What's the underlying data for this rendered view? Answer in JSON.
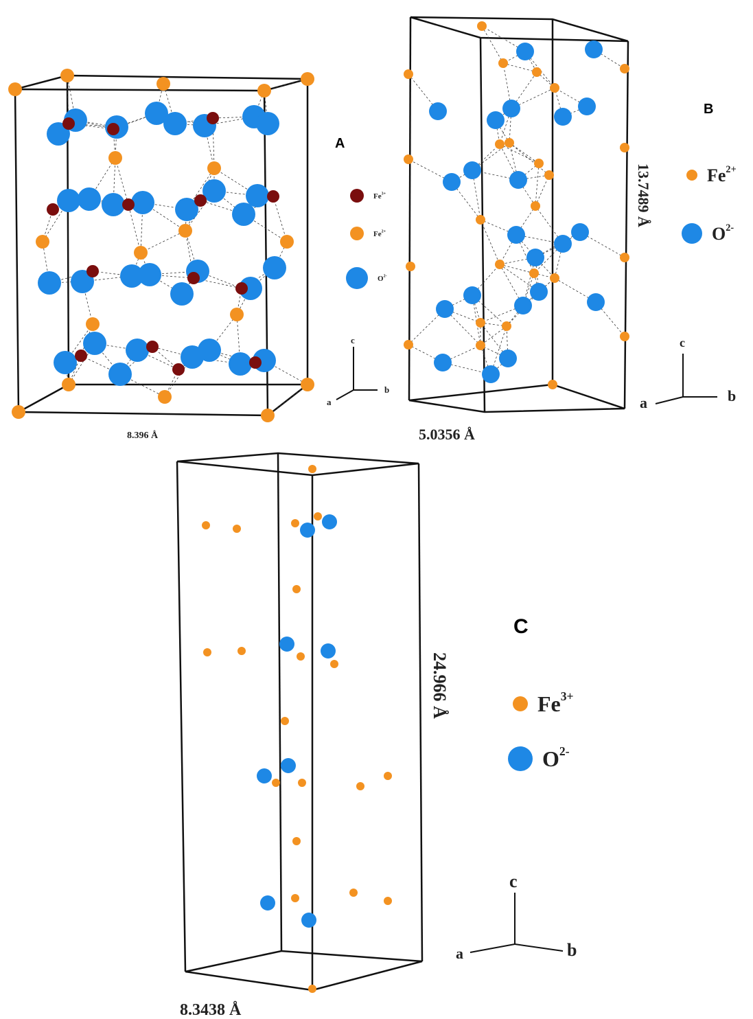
{
  "panels": [
    {
      "label": "A",
      "dimension": "8.396 Å",
      "legend": [
        {
          "symbol": "Fe",
          "charge": "3+"
        },
        {
          "symbol": "Fe",
          "charge": "2+"
        },
        {
          "symbol": "O",
          "charge": "2-"
        }
      ],
      "axes": {
        "a": "a",
        "b": "b",
        "c": "c"
      }
    },
    {
      "label": "B",
      "dimension": "5.0356 Å",
      "height": "13.7489 Å",
      "legend": [
        {
          "symbol": "Fe",
          "charge": "2+"
        },
        {
          "symbol": "O",
          "charge": "2-"
        }
      ],
      "axes": {
        "a": "a",
        "b": "b",
        "c": "c"
      }
    },
    {
      "label": "C",
      "dimension": "8.3438 Å",
      "height": "24.966 Å",
      "legend": [
        {
          "symbol": "Fe",
          "charge": "3+"
        },
        {
          "symbol": "O",
          "charge": "2-"
        }
      ],
      "axes": {
        "a": "a",
        "b": "b",
        "c": "c"
      }
    }
  ]
}
